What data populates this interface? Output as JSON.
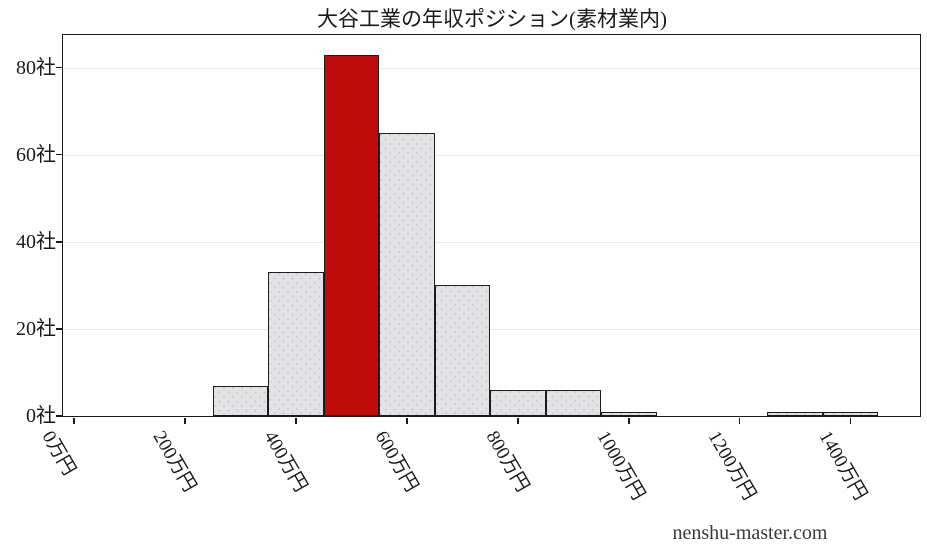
{
  "chart_data": {
    "type": "histogram",
    "title": "大谷工業の年収ポジション(素材業内)",
    "xlabel": "",
    "ylabel": "",
    "x_unit": "万円",
    "y_unit": "社",
    "xlim": [
      -20,
      1525
    ],
    "ylim": [
      0,
      87.5
    ],
    "grid": "horizontal",
    "legend": "none",
    "bin_width": 100,
    "bin_edges": [
      250,
      350,
      450,
      550,
      650,
      750,
      850,
      950,
      1050,
      1150,
      1250,
      1350,
      1450
    ],
    "counts": [
      7,
      33,
      83,
      65,
      30,
      6,
      6,
      1,
      0,
      0,
      1,
      1
    ],
    "highlight_bin_index": 2,
    "highlight_bin_range": "450-550万円",
    "x_ticks": [
      {
        "value": 0,
        "label": "0万円"
      },
      {
        "value": 200,
        "label": "200万円"
      },
      {
        "value": 400,
        "label": "400万円"
      },
      {
        "value": 600,
        "label": "600万円"
      },
      {
        "value": 800,
        "label": "800万円"
      },
      {
        "value": 1000,
        "label": "1000万円"
      },
      {
        "value": 1200,
        "label": "1200万円"
      },
      {
        "value": 1400,
        "label": "1400万円"
      }
    ],
    "y_ticks": [
      {
        "value": 0,
        "label": "0社"
      },
      {
        "value": 20,
        "label": "20社"
      },
      {
        "value": 40,
        "label": "40社"
      },
      {
        "value": 60,
        "label": "60社"
      },
      {
        "value": 80,
        "label": "80社"
      }
    ],
    "colors": {
      "bar_fill": "#e3e3e6",
      "bar_dot": "#c7c7cd",
      "bar_border": "#1c1c1c",
      "highlight_fill": "#c00b0b",
      "grid_line": "#e8e8e8",
      "axis": "#1a1a1a",
      "text": "#1a1a1a"
    }
  },
  "footer": {
    "watermark": "nenshu-master.com"
  }
}
